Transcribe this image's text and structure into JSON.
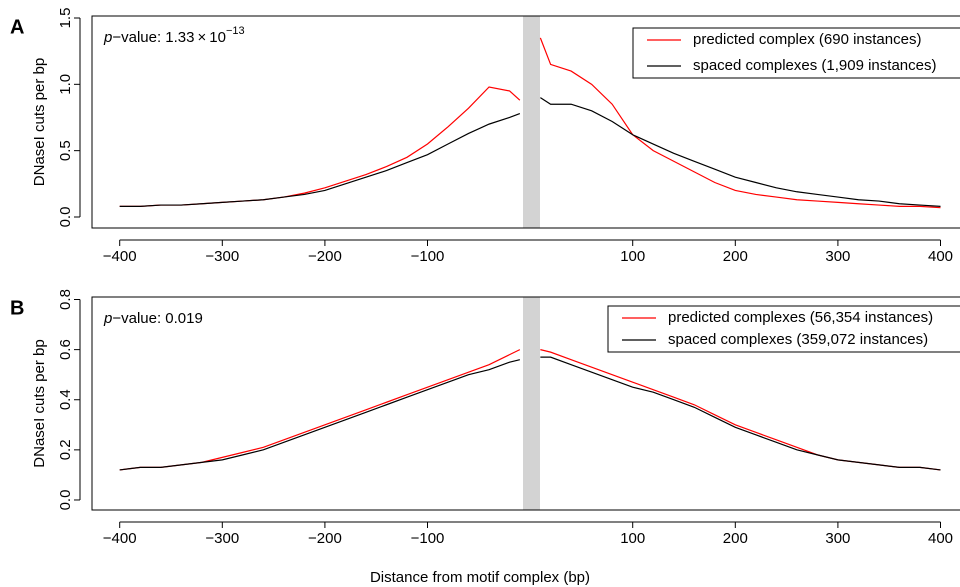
{
  "chart_data": [
    {
      "type": "line",
      "panel_label": "A",
      "ylabel": "DNaseI cuts per bp",
      "annotation": {
        "italic": "p",
        "text": "−value: 1.33 × 10",
        "exponent": "−13"
      },
      "legend": "upper right",
      "x": [
        -400,
        -380,
        -360,
        -340,
        -320,
        -300,
        -280,
        -260,
        -240,
        -220,
        -200,
        -180,
        -160,
        -140,
        -120,
        -100,
        -80,
        -60,
        -40,
        -20,
        -10,
        0,
        10,
        20,
        40,
        60,
        80,
        100,
        120,
        140,
        160,
        180,
        200,
        220,
        240,
        260,
        280,
        300,
        320,
        340,
        360,
        380,
        400
      ],
      "xlim": [
        -427,
        419
      ],
      "xticks": [
        {
          "value": -400,
          "label": "−400"
        },
        {
          "value": -300,
          "label": "−300"
        },
        {
          "value": -200,
          "label": "−200"
        },
        {
          "value": -100,
          "label": "−100"
        },
        100,
        200,
        300,
        400
      ],
      "ylim": [
        -0.083,
        1.515
      ],
      "yticks": [
        {
          "value": 0,
          "label": "0.0"
        },
        0.5,
        {
          "value": 1,
          "label": "1.0"
        },
        1.5
      ],
      "series": [
        {
          "name": "predicted complex (690 instances)",
          "color": "#ff0000",
          "values": [
            0.08,
            0.08,
            0.09,
            0.09,
            0.1,
            0.11,
            0.12,
            0.13,
            0.15,
            0.18,
            0.22,
            0.27,
            0.32,
            0.38,
            0.45,
            0.55,
            0.68,
            0.82,
            0.98,
            0.95,
            0.88,
            null,
            1.35,
            1.15,
            1.1,
            1.0,
            0.85,
            0.62,
            0.5,
            0.42,
            0.34,
            0.26,
            0.2,
            0.17,
            0.15,
            0.13,
            0.12,
            0.11,
            0.1,
            0.09,
            0.08,
            0.08,
            0.07
          ]
        },
        {
          "name": "spaced complexes (1,909 instances)",
          "color": "#000000",
          "values": [
            0.08,
            0.08,
            0.09,
            0.09,
            0.1,
            0.11,
            0.12,
            0.13,
            0.15,
            0.17,
            0.2,
            0.25,
            0.3,
            0.35,
            0.41,
            0.47,
            0.55,
            0.63,
            0.7,
            0.75,
            0.78,
            null,
            0.9,
            0.85,
            0.85,
            0.8,
            0.72,
            0.62,
            0.55,
            0.48,
            0.42,
            0.36,
            0.3,
            0.26,
            0.22,
            0.19,
            0.17,
            0.15,
            0.13,
            0.12,
            0.1,
            0.09,
            0.08
          ]
        }
      ]
    },
    {
      "type": "line",
      "panel_label": "B",
      "ylabel": "DNaseI cuts per bp",
      "xlabel": "Distance from motif complex (bp)",
      "annotation": {
        "italic": "p",
        "text": "−value: 0.019"
      },
      "legend": "upper right",
      "x": [
        -400,
        -380,
        -360,
        -340,
        -320,
        -300,
        -280,
        -260,
        -240,
        -220,
        -200,
        -180,
        -160,
        -140,
        -120,
        -100,
        -80,
        -60,
        -40,
        -20,
        -10,
        0,
        10,
        20,
        40,
        60,
        80,
        100,
        120,
        140,
        160,
        180,
        200,
        220,
        240,
        260,
        280,
        300,
        320,
        340,
        360,
        380,
        400
      ],
      "xlim": [
        -427,
        419
      ],
      "xticks": [
        {
          "value": -400,
          "label": "−400"
        },
        {
          "value": -300,
          "label": "−300"
        },
        {
          "value": -200,
          "label": "−200"
        },
        {
          "value": -100,
          "label": "−100"
        },
        100,
        200,
        300,
        400
      ],
      "ylim": [
        -0.04,
        0.81
      ],
      "yticks": [
        {
          "value": 0,
          "label": "0.0"
        },
        0.2,
        0.4,
        0.6,
        0.8
      ],
      "series": [
        {
          "name": "predicted complexes (56,354 instances)",
          "color": "#ff0000",
          "values": [
            0.12,
            0.13,
            0.13,
            0.14,
            0.15,
            0.17,
            0.19,
            0.21,
            0.24,
            0.27,
            0.3,
            0.33,
            0.36,
            0.39,
            0.42,
            0.45,
            0.48,
            0.51,
            0.54,
            0.58,
            0.6,
            null,
            0.6,
            0.59,
            0.56,
            0.53,
            0.5,
            0.47,
            0.44,
            0.41,
            0.38,
            0.34,
            0.3,
            0.27,
            0.24,
            0.21,
            0.18,
            0.16,
            0.15,
            0.14,
            0.13,
            0.13,
            0.12
          ]
        },
        {
          "name": "spaced complexes (359,072 instances)",
          "color": "#000000",
          "values": [
            0.12,
            0.13,
            0.13,
            0.14,
            0.15,
            0.16,
            0.18,
            0.2,
            0.23,
            0.26,
            0.29,
            0.32,
            0.35,
            0.38,
            0.41,
            0.44,
            0.47,
            0.5,
            0.52,
            0.55,
            0.56,
            null,
            0.57,
            0.57,
            0.54,
            0.51,
            0.48,
            0.45,
            0.43,
            0.4,
            0.37,
            0.33,
            0.29,
            0.26,
            0.23,
            0.2,
            0.18,
            0.16,
            0.15,
            0.14,
            0.13,
            0.13,
            0.12
          ]
        }
      ]
    }
  ]
}
